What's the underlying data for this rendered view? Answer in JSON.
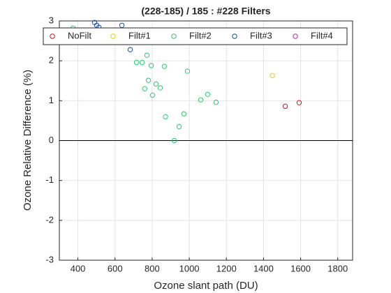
{
  "chart_data": {
    "type": "scatter",
    "title": "(228-185) / 185 : #228 Filters",
    "xlabel": "Ozone slant path (DU)",
    "ylabel": "Ozone Relative Difference (%)",
    "xlim": [
      300,
      1880
    ],
    "ylim": [
      -3,
      3
    ],
    "xticks": [
      400,
      600,
      800,
      1000,
      1200,
      1400,
      1600,
      1800
    ],
    "yticks": [
      -3,
      -2,
      -1,
      0,
      1,
      2,
      3
    ],
    "grid": true,
    "hline": 0,
    "legend": "top",
    "series": [
      {
        "name": "NoFilt",
        "color": "#e01010",
        "x": [
          1517,
          1592
        ],
        "values": [
          0.86,
          0.95
        ]
      },
      {
        "name": "Filt#1",
        "color": "#e0d000",
        "x": [
          1448
        ],
        "values": [
          1.63
        ]
      },
      {
        "name": "Filt#2",
        "color": "#30c870",
        "x": [
          374,
          697,
          772,
          716,
          746,
          795,
          866,
          990,
          780,
          821,
          760,
          844,
          802,
          1099,
          1062,
          1144,
          971,
          872,
          945,
          919
        ],
        "values": [
          2.82,
          2.77,
          2.14,
          1.96,
          1.96,
          1.88,
          1.86,
          1.74,
          1.51,
          1.42,
          1.3,
          1.32,
          1.14,
          1.16,
          1.02,
          0.96,
          0.67,
          0.6,
          0.35,
          0.0
        ]
      },
      {
        "name": "Filt#3",
        "color": "#0050c8",
        "x": [
          490,
          501,
          513,
          637,
          682
        ],
        "values": [
          2.96,
          2.89,
          2.84,
          2.89,
          2.28
        ]
      },
      {
        "name": "Filt#4",
        "color": "#c020c0",
        "x": [],
        "values": []
      }
    ]
  }
}
